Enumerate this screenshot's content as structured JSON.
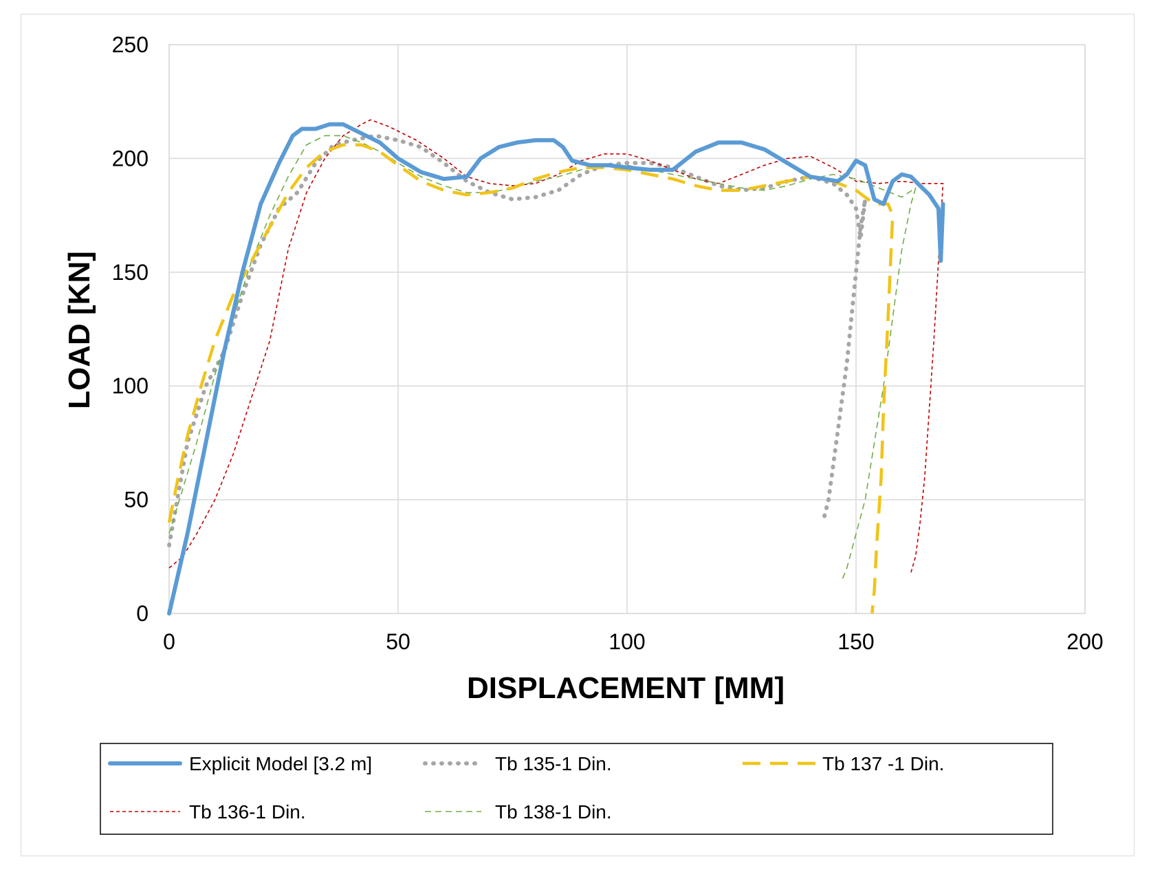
{
  "chart_data": {
    "type": "line",
    "xlabel": "DISPLACEMENT [MM]",
    "ylabel": "LOAD  [KN]",
    "xlim": [
      0,
      200
    ],
    "ylim": [
      0,
      250
    ],
    "x_ticks": [
      "0",
      "50",
      "100",
      "150",
      "200"
    ],
    "y_ticks": [
      "0",
      "50",
      "100",
      "150",
      "200",
      "250"
    ],
    "grid": true,
    "legend_position": "bottom",
    "series": [
      {
        "name": "Explicit Model [3.2 m]",
        "color": "#5b9bd5",
        "style": "solid-thick",
        "x": [
          0,
          4,
          8,
          12,
          16,
          20,
          24,
          27,
          29,
          32,
          35,
          38,
          42,
          46,
          50,
          55,
          60,
          65,
          68,
          72,
          76,
          80,
          84,
          86,
          88,
          92,
          96,
          100,
          105,
          110,
          115,
          120,
          125,
          130,
          135,
          140,
          143,
          146,
          148,
          150,
          152,
          154,
          156,
          158,
          160,
          162,
          164,
          166,
          168,
          168.5,
          169
        ],
        "y": [
          0,
          35,
          75,
          115,
          150,
          180,
          198,
          210,
          213,
          213,
          215,
          215,
          211,
          207,
          200,
          194,
          191,
          192,
          200,
          205,
          207,
          208,
          208,
          205,
          199,
          197,
          197,
          196,
          195,
          195,
          203,
          207,
          207,
          204,
          198,
          192,
          191,
          190,
          193,
          199,
          197,
          182,
          180,
          190,
          193,
          192,
          188,
          184,
          178,
          155,
          180
        ]
      },
      {
        "name": "Tb 135-1 Din.",
        "color": "#a6a6a6",
        "style": "dotted-thick",
        "x": [
          0,
          4,
          8,
          12,
          16,
          20,
          24,
          28,
          32,
          36,
          40,
          45,
          50,
          55,
          60,
          65,
          70,
          75,
          80,
          85,
          90,
          95,
          100,
          105,
          110,
          115,
          120,
          125,
          130,
          135,
          140,
          145,
          148,
          150,
          151,
          152,
          151,
          150,
          149,
          148,
          147,
          146,
          145,
          144,
          143
        ],
        "y": [
          30,
          75,
          100,
          115,
          140,
          162,
          178,
          185,
          198,
          206,
          208,
          210,
          208,
          205,
          198,
          190,
          185,
          182,
          183,
          186,
          193,
          197,
          198,
          198,
          196,
          192,
          188,
          186,
          187,
          190,
          192,
          189,
          184,
          178,
          165,
          182,
          170,
          150,
          130,
          110,
          95,
          80,
          65,
          50,
          42
        ]
      },
      {
        "name": "Tb 137 -1 Din.",
        "color": "#f0c419",
        "style": "dashed-long",
        "x": [
          0,
          2,
          4,
          7,
          10,
          14,
          18,
          22,
          26,
          30,
          34,
          38,
          42,
          46,
          50,
          55,
          60,
          65,
          70,
          75,
          80,
          85,
          90,
          95,
          100,
          105,
          110,
          115,
          120,
          125,
          130,
          135,
          140,
          145,
          150,
          154,
          157,
          158,
          157,
          156,
          155.5,
          155,
          154.5,
          154,
          153.5
        ],
        "y": [
          40,
          60,
          78,
          100,
          120,
          140,
          155,
          170,
          185,
          196,
          203,
          206,
          206,
          203,
          197,
          190,
          186,
          184,
          185,
          187,
          191,
          194,
          196,
          196,
          195,
          193,
          191,
          188,
          186,
          186,
          188,
          190,
          192,
          190,
          186,
          180,
          180,
          175,
          130,
          90,
          60,
          45,
          30,
          10,
          0
        ]
      },
      {
        "name": "Tb 136-1 Din.",
        "color": "#c00000",
        "style": "dashed-short",
        "x": [
          0,
          3,
          6,
          10,
          14,
          18,
          22,
          26,
          30,
          34,
          38,
          42,
          44,
          48,
          54,
          60,
          65,
          70,
          75,
          80,
          85,
          90,
          95,
          100,
          105,
          110,
          115,
          120,
          125,
          130,
          135,
          140,
          145,
          150,
          155,
          160,
          164,
          168,
          169,
          168,
          167,
          166,
          165,
          164,
          163,
          162
        ],
        "y": [
          20,
          25,
          35,
          50,
          70,
          95,
          120,
          160,
          185,
          200,
          210,
          215,
          217,
          214,
          208,
          200,
          192,
          189,
          188,
          189,
          193,
          199,
          202,
          202,
          199,
          195,
          191,
          189,
          193,
          197,
          200,
          201,
          196,
          190,
          189,
          190,
          189,
          189,
          189,
          155,
          120,
          90,
          60,
          40,
          25,
          18
        ]
      },
      {
        "name": "Tb 138-1 Din.",
        "color": "#70ad47",
        "style": "dashed-thin",
        "x": [
          0,
          3,
          6,
          10,
          14,
          18,
          22,
          26,
          30,
          34,
          38,
          42,
          46,
          50,
          55,
          60,
          65,
          70,
          75,
          80,
          85,
          90,
          95,
          100,
          105,
          110,
          115,
          120,
          125,
          130,
          135,
          140,
          145,
          150,
          155,
          160,
          163,
          162,
          160,
          158,
          156,
          154,
          152,
          150,
          148,
          147
        ],
        "y": [
          35,
          55,
          75,
          105,
          130,
          155,
          175,
          192,
          206,
          210,
          210,
          207,
          203,
          198,
          192,
          188,
          185,
          185,
          187,
          190,
          192,
          195,
          197,
          197,
          195,
          193,
          191,
          189,
          187,
          186,
          188,
          191,
          193,
          191,
          187,
          183,
          187,
          180,
          160,
          130,
          100,
          75,
          50,
          35,
          20,
          15
        ]
      }
    ]
  }
}
